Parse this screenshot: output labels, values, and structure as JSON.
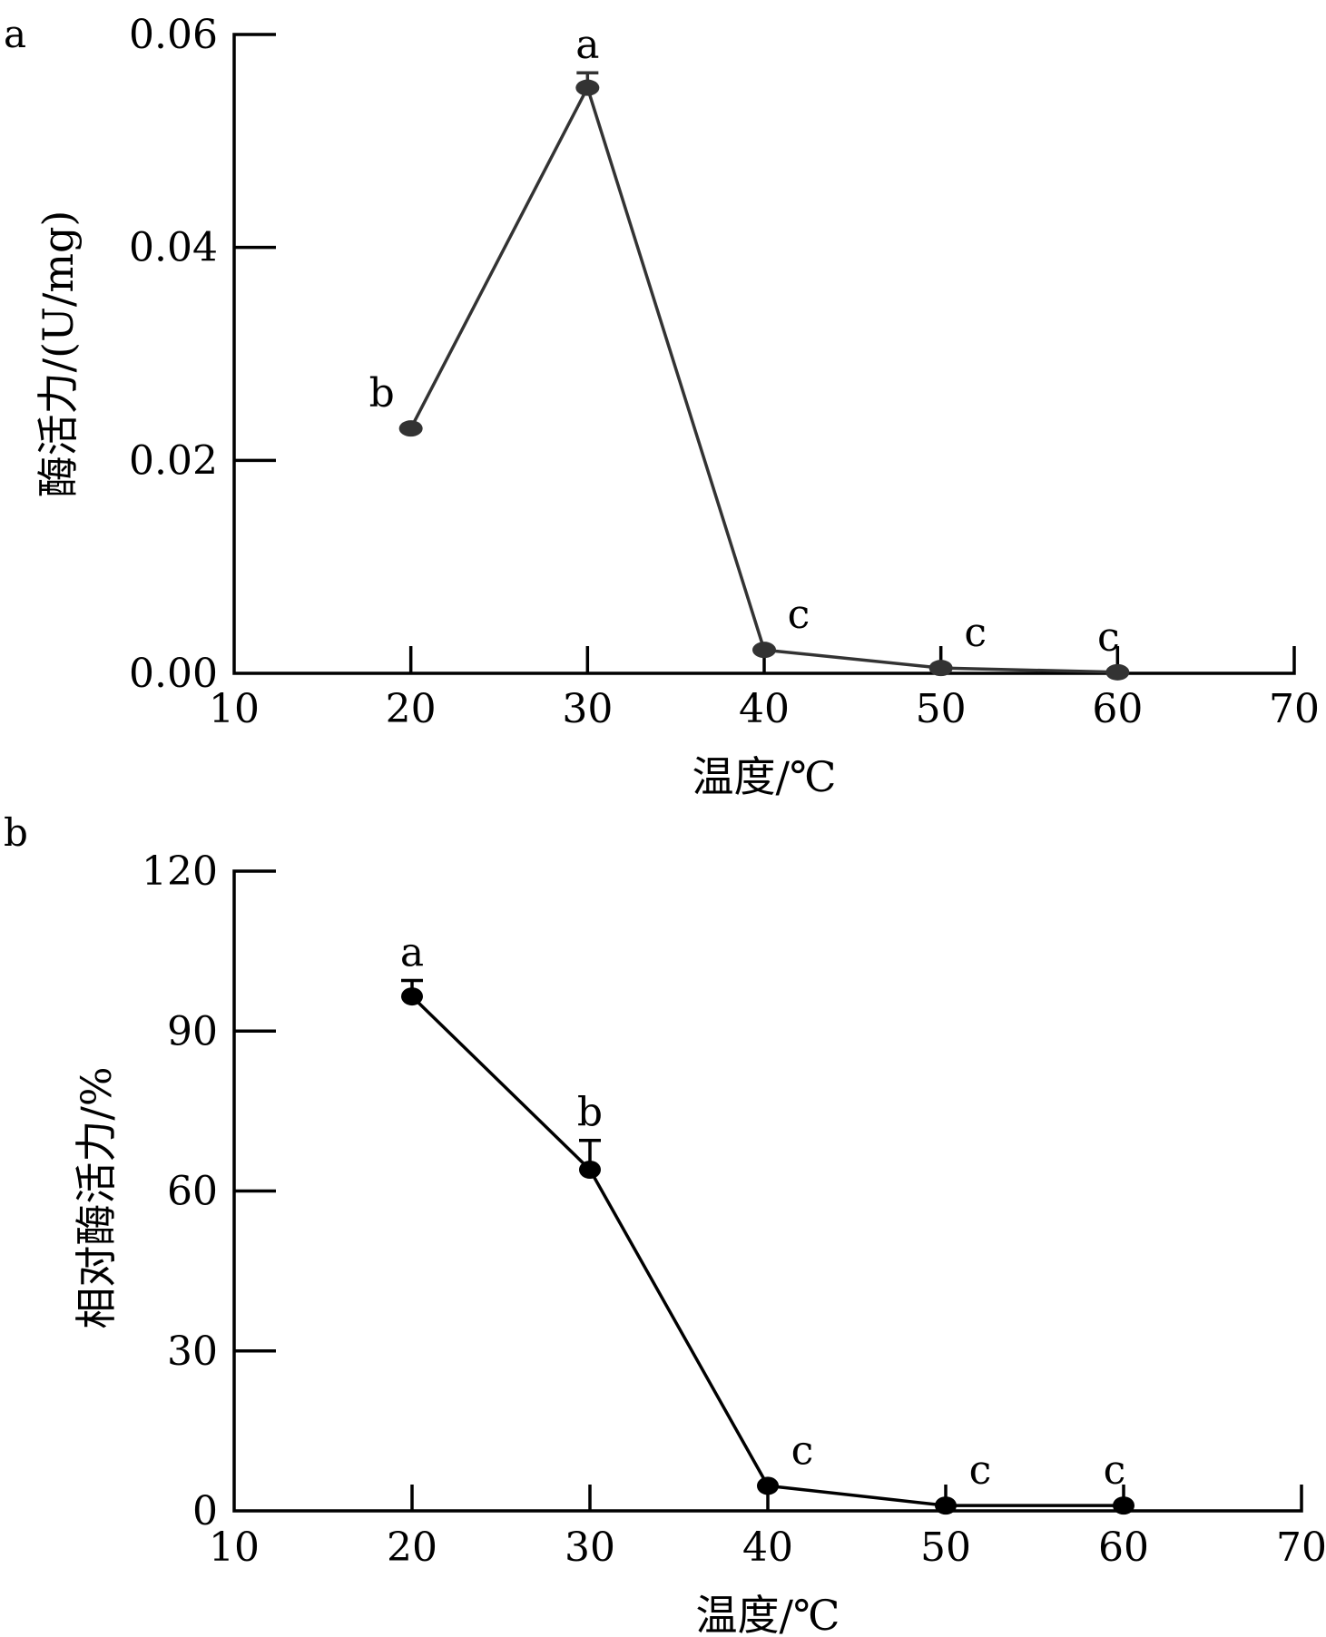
{
  "chart_data": [
    {
      "type": "line",
      "panel_label": "a",
      "xlabel": "温度/℃",
      "ylabel": "酶活力/(U/mg)",
      "xlim": [
        10,
        70
      ],
      "ylim": [
        0,
        0.06
      ],
      "xticks": [
        10,
        20,
        30,
        40,
        50,
        60,
        70
      ],
      "xtick_labels": [
        "10",
        "20",
        "30",
        "40",
        "50",
        "60",
        "70"
      ],
      "yticks": [
        0,
        0.02,
        0.04,
        0.06
      ],
      "ytick_labels": [
        "0.00",
        "0.02",
        "0.04",
        "0.06"
      ],
      "color": "#333333",
      "grid": false,
      "series": [
        {
          "x": [
            20,
            30,
            40,
            50,
            60
          ],
          "y": [
            0.023,
            0.055,
            0.0022,
            0.0005,
            0.0001
          ],
          "error": [
            0,
            0.0014,
            0,
            0,
            0
          ],
          "labels": [
            "b",
            "a",
            "c",
            "c",
            "c"
          ]
        }
      ]
    },
    {
      "type": "line",
      "panel_label": "b",
      "xlabel": "温度/℃",
      "ylabel": "相对酶活力/%",
      "xlim": [
        10,
        70
      ],
      "ylim": [
        0,
        120
      ],
      "xticks": [
        10,
        20,
        30,
        40,
        50,
        60,
        70
      ],
      "xtick_labels": [
        "10",
        "20",
        "30",
        "40",
        "50",
        "60",
        "70"
      ],
      "yticks": [
        0,
        30,
        60,
        90,
        120
      ],
      "ytick_labels": [
        "0",
        "30",
        "60",
        "90",
        "120"
      ],
      "color": "#000000",
      "grid": false,
      "series": [
        {
          "x": [
            20,
            30,
            40,
            50,
            60
          ],
          "y": [
            96.5,
            64,
            4.7,
            1,
            1
          ],
          "error": [
            3,
            5.5,
            0,
            0,
            0
          ],
          "labels": [
            "a",
            "b",
            "c",
            "c",
            "c"
          ]
        }
      ]
    }
  ]
}
